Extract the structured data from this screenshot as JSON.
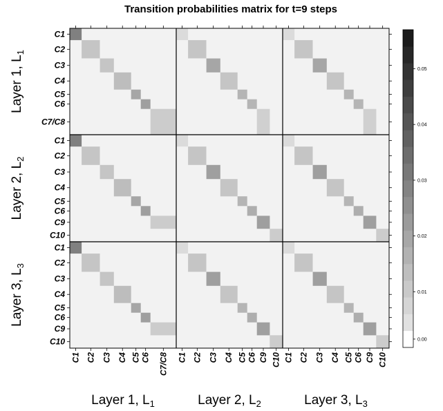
{
  "chart_data": {
    "type": "heatmap",
    "title": "Transition probabilities matrix for t=9 steps",
    "row_layers": [
      {
        "name": "Layer 1, L",
        "sub": "1",
        "clusters": [
          "C1",
          "C2",
          "C3",
          "C4",
          "C5",
          "C6",
          "C7/C8"
        ]
      },
      {
        "name": "Layer 2, L",
        "sub": "2",
        "clusters": [
          "C1",
          "C2",
          "C3",
          "C4",
          "C5",
          "C6",
          "C9",
          "C10"
        ]
      },
      {
        "name": "Layer 3, L",
        "sub": "3",
        "clusters": [
          "C1",
          "C2",
          "C3",
          "C4",
          "C5",
          "C6",
          "C9",
          "C10"
        ]
      }
    ],
    "col_layers": [
      {
        "name": "Layer 1, L",
        "sub": "1",
        "clusters": [
          "C1",
          "C2",
          "C3",
          "C4",
          "C5",
          "C6",
          "C7/C8"
        ]
      },
      {
        "name": "Layer 2, L",
        "sub": "2",
        "clusters": [
          "C1",
          "C2",
          "C3",
          "C4",
          "C5",
          "C6",
          "C9",
          "C10"
        ]
      },
      {
        "name": "Layer 3, L",
        "sub": "3",
        "clusters": [
          "C1",
          "C2",
          "C3",
          "C4",
          "C5",
          "C6",
          "C9",
          "C10"
        ]
      }
    ],
    "colorbar": {
      "range": [
        0,
        0.057
      ],
      "ticks": [
        "0.00",
        "0.01",
        "0.02",
        "0.03",
        "0.04",
        "0.05"
      ],
      "tick_values": [
        0,
        0.01,
        0.02,
        0.03,
        0.04,
        0.05
      ],
      "low_color": "#ffffff",
      "high_color": "#1a1a1a"
    },
    "background_color": "#f2f2f2",
    "block_values": {
      "L1-L1": [
        0.03,
        0.012,
        0.012,
        0.014,
        0.02,
        0.022,
        0.01
      ],
      "L1-L2": [
        0.006,
        0.012,
        0.02,
        0.012,
        0.016,
        0.016,
        0.009,
        0.009
      ],
      "L1-L3": [
        0.006,
        0.012,
        0.02,
        0.012,
        0.016,
        0.016,
        0.009,
        0.009
      ],
      "L2-L1": [
        0.03,
        0.012,
        0.012,
        0.014,
        0.02,
        0.022,
        0.01
      ],
      "L2-L2": [
        0.006,
        0.012,
        0.022,
        0.012,
        0.016,
        0.018,
        0.022,
        0.01
      ],
      "L2-L3": [
        0.006,
        0.012,
        0.022,
        0.012,
        0.016,
        0.018,
        0.022,
        0.01
      ],
      "L3-L1": [
        0.03,
        0.012,
        0.012,
        0.014,
        0.02,
        0.022,
        0.01
      ],
      "L3-L2": [
        0.006,
        0.012,
        0.022,
        0.012,
        0.016,
        0.018,
        0.022,
        0.01
      ],
      "L3-L3": [
        0.006,
        0.012,
        0.022,
        0.012,
        0.016,
        0.018,
        0.022,
        0.01
      ]
    }
  }
}
